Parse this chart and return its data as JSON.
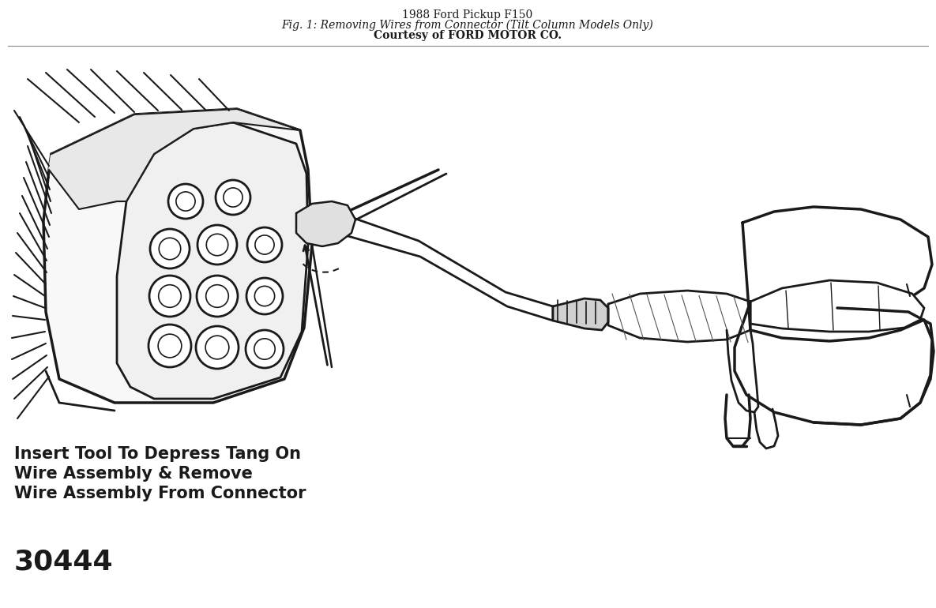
{
  "title_line1": "1988 Ford Pickup F150",
  "title_line2": "Fig. 1: Removing Wires from Connector (Tilt Column Models Only)",
  "title_line3": "Courtesy of FORD MOTOR CO.",
  "caption_line1": "Insert Tool To Depress Tang On",
  "caption_line2": "Wire Assembly & Remove",
  "caption_line3": "Wire Assembly From Connector",
  "figure_number": "30444",
  "bg_color": "#ffffff",
  "line_color": "#1a1a1a",
  "title_fontsize": 10,
  "caption_fontsize": 15,
  "fig_num_fontsize": 26
}
